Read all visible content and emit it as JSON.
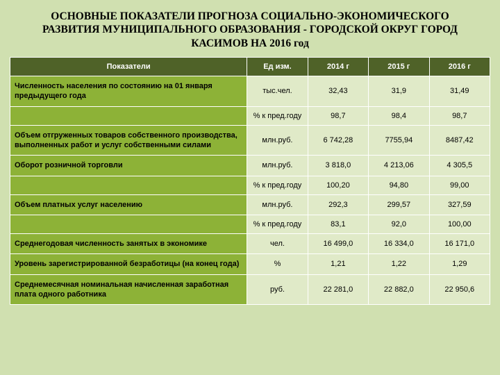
{
  "title": "ОСНОВНЫЕ   ПОКАЗАТЕЛИ ПРОГНОЗА СОЦИАЛЬНО-ЭКОНОМИЧЕСКОГО РАЗВИТИЯ МУНИЦИПАЛЬНОГО ОБРАЗОВАНИЯ - ГОРОДСКОЙ ОКРУГ ГОРОД КАСИМОВ НА 2016 год",
  "headers": {
    "indicators": "Показатели",
    "unit": "Ед изм.",
    "y2014": "2014 г",
    "y2015": "2015 г",
    "y2016": "2016 г"
  },
  "rows": [
    {
      "label": "Численность населения\nпо состоянию на 01 января предыдущего года",
      "unit": "тыс.чел.",
      "v2014": "32,43",
      "v2015": "31,9",
      "v2016": "31,49"
    },
    {
      "label": "",
      "unit": "% к пред.году",
      "v2014": "98,7",
      "v2015": "98,4",
      "v2016": "98,7"
    },
    {
      "label": "Объем отгруженных товаров собственного производства, выполненных работ и услуг собственными силами",
      "unit": "млн.руб.",
      "v2014": "6 742,28",
      "v2015": "7755,94",
      "v2016": "8487,42"
    },
    {
      "label": "Оборот розничной торговли",
      "unit": "млн.руб.",
      "v2014": "3 818,0",
      "v2015": "4 213,06",
      "v2016": "4 305,5"
    },
    {
      "label": "",
      "unit": "% к пред.году",
      "v2014": "100,20",
      "v2015": "94,80",
      "v2016": "99,00"
    },
    {
      "label": "Объем платных услуг населению",
      "unit": "млн.руб.",
      "v2014": "292,3",
      "v2015": "299,57",
      "v2016": "327,59"
    },
    {
      "label": "",
      "unit": "% к пред.году",
      "v2014": "83,1",
      "v2015": "92,0",
      "v2016": "100,00"
    },
    {
      "label": "Среднегодовая численность занятых в экономике",
      "unit": "чел.",
      "v2014": "16 499,0",
      "v2015": "16 334,0",
      "v2016": "16 171,0"
    },
    {
      "label": "Уровень зарегистрированной безработицы (на конец года)",
      "unit": "%",
      "v2014": "1,21",
      "v2015": "1,22",
      "v2016": "1,29"
    },
    {
      "label": "Среднемесячная номинальная начисленная заработная плата одного работника",
      "unit": "руб.",
      "v2014": "22 281,0",
      "v2015": "22 882,0",
      "v2016": "22 950,6"
    }
  ],
  "style": {
    "slide_bg": "#d0e0b0",
    "header_bg": "#4f6228",
    "header_fg": "#ffffff",
    "label_bg": "#8db237",
    "cell_bg": "#e0eac8",
    "border": "#ffffff",
    "title_fontsize": 15.5,
    "body_fontsize": 11
  }
}
